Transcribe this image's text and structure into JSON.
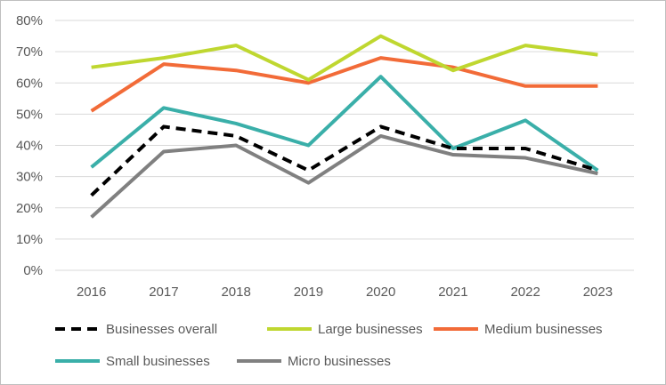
{
  "chart_data": {
    "type": "line",
    "title": "",
    "xlabel": "",
    "ylabel": "",
    "x": [
      "2016",
      "2017",
      "2018",
      "2019",
      "2020",
      "2021",
      "2022",
      "2023"
    ],
    "ylim": [
      0,
      80
    ],
    "yticks": [
      "0%",
      "10%",
      "20%",
      "30%",
      "40%",
      "50%",
      "60%",
      "70%",
      "80%"
    ],
    "grid": "horizontal",
    "legend_position": "bottom",
    "series": [
      {
        "name": "Businesses overall",
        "color": "#000000",
        "style": "dashed",
        "values": [
          24,
          46,
          43,
          32,
          46,
          39,
          39,
          32
        ]
      },
      {
        "name": "Large businesses",
        "color": "#bfd730",
        "style": "solid",
        "values": [
          65,
          68,
          72,
          61,
          75,
          64,
          72,
          69
        ]
      },
      {
        "name": "Medium businesses",
        "color": "#f26b38",
        "style": "solid",
        "values": [
          51,
          66,
          64,
          60,
          68,
          65,
          59,
          59
        ]
      },
      {
        "name": "Small businesses",
        "color": "#3aafa9",
        "style": "solid",
        "values": [
          33,
          52,
          47,
          40,
          62,
          39,
          48,
          32
        ]
      },
      {
        "name": "Micro businesses",
        "color": "#808080",
        "style": "solid",
        "values": [
          17,
          38,
          40,
          28,
          43,
          37,
          36,
          31
        ]
      }
    ]
  }
}
